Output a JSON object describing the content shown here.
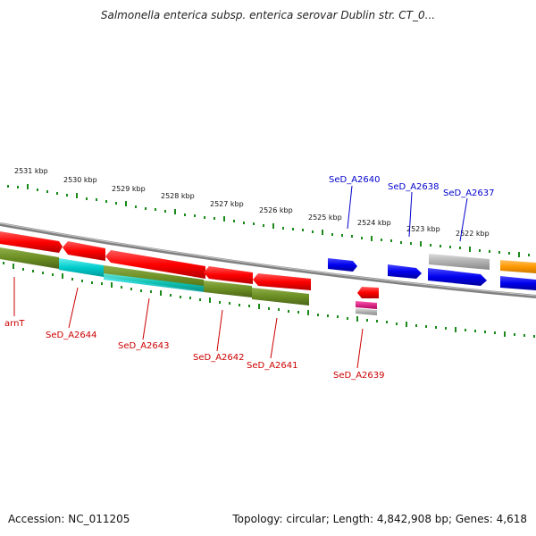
{
  "title": "Salmonella enterica subsp. enterica serovar Dublin str. CT_0...",
  "footer": {
    "accession": "Accession: NC_011205",
    "summary": "Topology: circular; Length: 4,842,908 bp; Genes: 4,618"
  },
  "scale_labels": [
    "2531 kbp",
    "2530 kbp",
    "2529 kbp",
    "2528 kbp",
    "2527 kbp",
    "2526 kbp",
    "2525 kbp",
    "2524 kbp",
    "2523 kbp",
    "2522 kbp"
  ],
  "gene_labels": {
    "arnT": "arnT",
    "a2644": "SeD_A2644",
    "a2643": "SeD_A2643",
    "a2642": "SeD_A2642",
    "a2641": "SeD_A2641",
    "a2640": "SeD_A2640",
    "a2639": "SeD_A2639",
    "a2638": "SeD_A2638",
    "a2637": "SeD_A2637"
  },
  "colors": {
    "red": "#ff0000",
    "blue": "#0000ee",
    "olive": "#6b8e23",
    "cyan": "#00cccc",
    "grey": "#b0b0b0",
    "orange": "#ff9900",
    "magenta": "#e6007e",
    "tick_green": "#1a8a1a",
    "backbone": "#808080"
  }
}
